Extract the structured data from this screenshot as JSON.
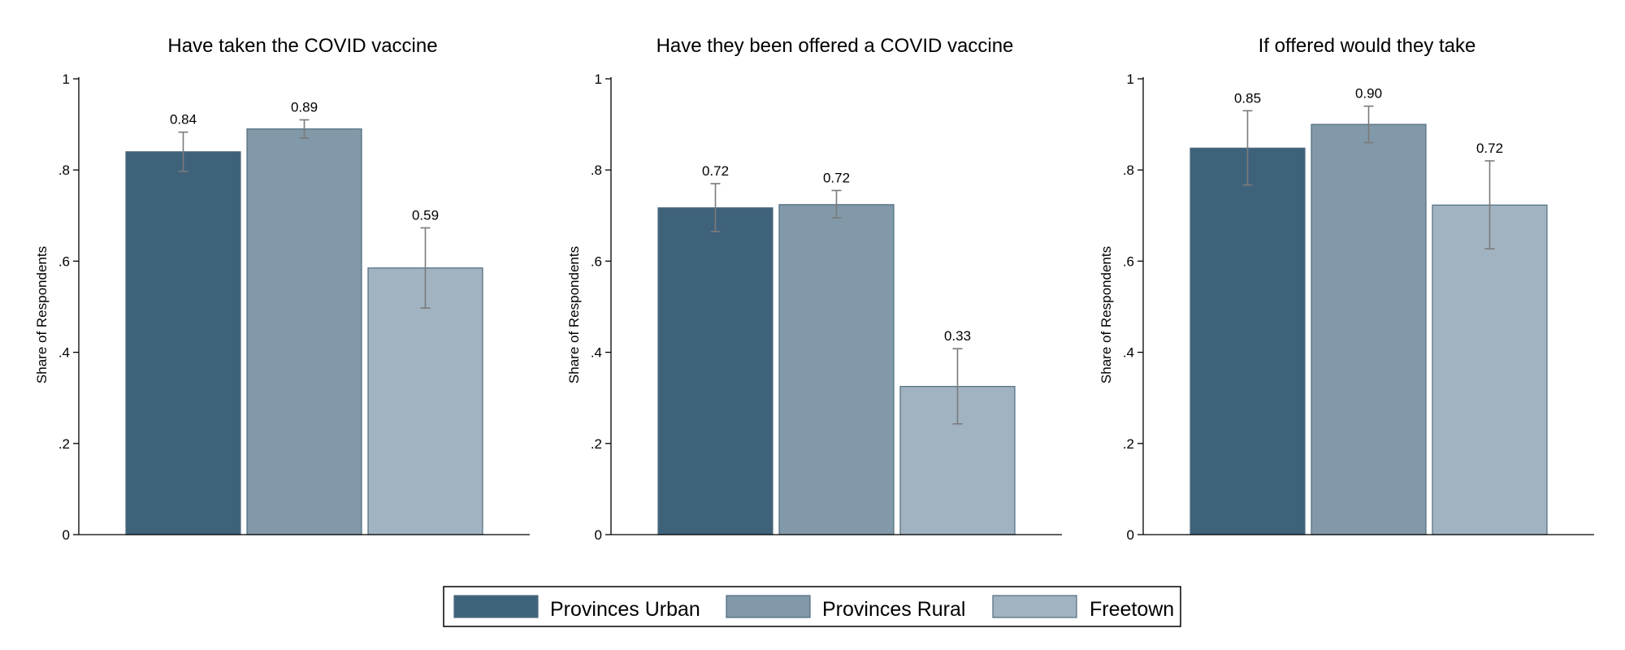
{
  "chart_data": [
    {
      "type": "bar",
      "title": "Have taken the COVID vaccine",
      "ylabel": "Share of Respondents",
      "ylim": [
        0,
        1
      ],
      "yticks": [
        "0",
        ".2",
        ".4",
        ".6",
        ".8",
        "1"
      ],
      "series": [
        {
          "name": "Provinces Urban",
          "value": 0.84,
          "label": "0.84",
          "ci": [
            0.797,
            0.883
          ]
        },
        {
          "name": "Provinces Rural",
          "value": 0.89,
          "label": "0.89",
          "ci": [
            0.87,
            0.91
          ]
        },
        {
          "name": "Freetown",
          "value": 0.585,
          "label": "0.59",
          "ci": [
            0.497,
            0.673
          ]
        }
      ]
    },
    {
      "type": "bar",
      "title": "Have they been offered a COVID vaccine",
      "ylabel": "Share of Respondents",
      "ylim": [
        0,
        1
      ],
      "yticks": [
        "0",
        ".2",
        ".4",
        ".6",
        ".8",
        "1"
      ],
      "series": [
        {
          "name": "Provinces Urban",
          "value": 0.717,
          "label": "0.72",
          "ci": [
            0.665,
            0.77
          ]
        },
        {
          "name": "Provinces Rural",
          "value": 0.724,
          "label": "0.72",
          "ci": [
            0.695,
            0.755
          ]
        },
        {
          "name": "Freetown",
          "value": 0.325,
          "label": "0.33",
          "ci": [
            0.243,
            0.408
          ]
        }
      ]
    },
    {
      "type": "bar",
      "title": "If offered would they take",
      "ylabel": "Share of Respondents",
      "ylim": [
        0,
        1
      ],
      "yticks": [
        "0",
        ".2",
        ".4",
        ".6",
        ".8",
        "1"
      ],
      "series": [
        {
          "name": "Provinces Urban",
          "value": 0.848,
          "label": "0.85",
          "ci": [
            0.767,
            0.93
          ]
        },
        {
          "name": "Provinces Rural",
          "value": 0.9,
          "label": "0.90",
          "ci": [
            0.86,
            0.94
          ]
        },
        {
          "name": "Freetown",
          "value": 0.723,
          "label": "0.72",
          "ci": [
            0.627,
            0.82
          ]
        }
      ]
    }
  ],
  "legend": {
    "position": "bottom",
    "items": [
      {
        "name": "Provinces Urban",
        "color": "#3f627b"
      },
      {
        "name": "Provinces Rural",
        "color": "#8199a8"
      },
      {
        "name": "Freetown",
        "color": "#a1b3c1"
      }
    ]
  },
  "colors": {
    "provinces_urban": "#3f627b",
    "provinces_rural": "#8199a8",
    "freetown": "#a1b3c1",
    "error_bar": "#7a7a7a"
  }
}
